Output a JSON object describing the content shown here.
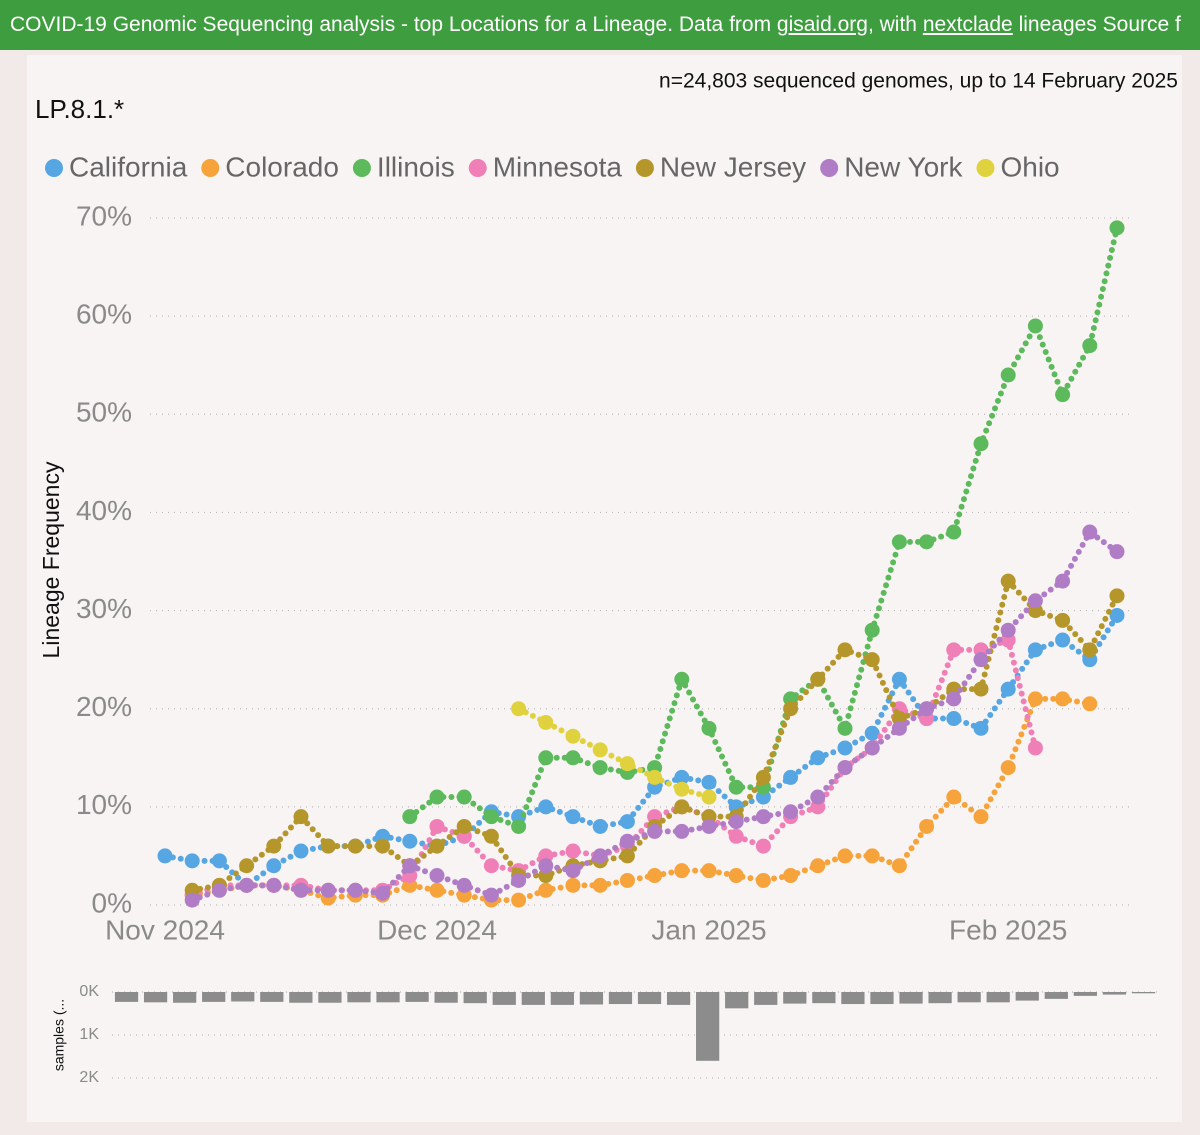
{
  "banner": {
    "parts": [
      "COVID-19 Genomic Sequencing analysis - top Locations for a Lineage. Data from ",
      "gisaid.org",
      ", with ",
      "nextclade",
      " lineages Source f"
    ]
  },
  "chart_data": [
    {
      "type": "line",
      "title": "LP.8.1.*",
      "subtitle": "n=24,803 sequenced genomes, up to 14 February 2025",
      "y_label": "Lineage Frequency",
      "legend": "top",
      "grid": true,
      "categories": [
        "Nov 2024",
        null,
        null,
        null,
        null,
        null,
        null,
        null,
        null,
        null,
        "Dec 2024",
        null,
        null,
        null,
        null,
        null,
        null,
        null,
        null,
        null,
        "Jan 2025",
        null,
        null,
        null,
        null,
        null,
        null,
        null,
        null,
        null,
        null,
        "Feb 2025",
        null,
        null,
        null,
        null
      ],
      "ylim": [
        0,
        70
      ],
      "yticks": [
        {
          "value": 0,
          "label": "0%"
        },
        {
          "value": 10,
          "label": "10%"
        },
        {
          "value": 20,
          "label": "20%"
        },
        {
          "value": 30,
          "label": "30%"
        },
        {
          "value": 40,
          "label": "40%"
        },
        {
          "value": 50,
          "label": "50%"
        },
        {
          "value": 60,
          "label": "60%"
        },
        {
          "value": 70,
          "label": "70%"
        }
      ],
      "series": [
        {
          "name": "California",
          "color": "#55a6e3",
          "values": [
            5,
            4.5,
            4.5,
            2,
            4,
            5.5,
            6,
            6,
            7,
            6.5,
            6,
            7,
            9.5,
            9,
            10,
            9,
            8,
            8.5,
            12,
            13,
            12.5,
            10,
            11,
            13,
            15,
            16,
            17.5,
            23,
            19,
            19,
            18,
            22,
            26,
            27,
            25,
            29.5
          ]
        },
        {
          "name": "Colorado",
          "color": "#f7a33c",
          "values": [
            null,
            1,
            1.5,
            2,
            2,
            1.5,
            0.7,
            1,
            1,
            2,
            1.5,
            1,
            0.5,
            0.5,
            1.5,
            2,
            2,
            2.5,
            3,
            3.5,
            3.5,
            3,
            2.5,
            3,
            4,
            5,
            5,
            4,
            8,
            11,
            9,
            14,
            21,
            21,
            20.5,
            null
          ]
        },
        {
          "name": "Illinois",
          "color": "#5cba5c",
          "values": [
            null,
            null,
            null,
            null,
            null,
            null,
            null,
            null,
            null,
            9,
            11,
            11,
            9,
            8,
            15,
            15,
            14,
            13.5,
            14,
            23,
            18,
            12,
            12,
            21,
            23,
            18,
            28,
            37,
            37,
            38,
            47,
            54,
            59,
            52,
            57,
            69
          ]
        },
        {
          "name": "Minnesota",
          "color": "#ef7fb6",
          "values": [
            null,
            1,
            2,
            2,
            2,
            2,
            1.5,
            1.5,
            1.5,
            3,
            8,
            7,
            4,
            3.5,
            5,
            5.5,
            5,
            6,
            9,
            10,
            9,
            7,
            6,
            9,
            10,
            14,
            16,
            20,
            19,
            26,
            26,
            27,
            16,
            null,
            null,
            null
          ]
        },
        {
          "name": "New Jersey",
          "color": "#b5962b",
          "values": [
            null,
            1.5,
            2,
            4,
            6,
            9,
            6,
            6,
            6,
            4,
            6,
            8,
            7,
            3,
            3,
            4,
            4.5,
            5,
            8,
            10,
            9,
            9,
            13,
            20,
            23,
            26,
            25,
            19,
            20,
            22,
            22,
            33,
            30,
            29,
            26,
            31.5
          ]
        },
        {
          "name": "New York",
          "color": "#b07cc6",
          "values": [
            null,
            0.5,
            1.5,
            2,
            2,
            1.5,
            1.5,
            1.5,
            1.2,
            4,
            3,
            2,
            1,
            2.5,
            4,
            3.5,
            5,
            6.5,
            7.5,
            7.5,
            8,
            8.5,
            9,
            9.5,
            11,
            14,
            16,
            18,
            20,
            21,
            25,
            28,
            31,
            33,
            38,
            36
          ]
        },
        {
          "name": "Ohio",
          "color": "#e0d23e",
          "values": [
            null,
            null,
            null,
            null,
            null,
            null,
            null,
            null,
            null,
            null,
            null,
            null,
            null,
            20,
            18.6,
            17.2,
            15.8,
            14.4,
            13,
            11.8,
            11,
            null,
            null,
            null,
            null,
            null,
            null,
            null,
            null,
            null,
            null,
            null,
            null,
            null,
            null,
            null
          ]
        }
      ]
    },
    {
      "type": "bar",
      "y_label": "samples (...",
      "y_inverted": true,
      "grid": true,
      "color": "#8c8c8c",
      "ylim": [
        0,
        2000
      ],
      "yticks": [
        {
          "value": 0,
          "label": "0K"
        },
        {
          "value": 1000,
          "label": "1K"
        },
        {
          "value": 2000,
          "label": "2K"
        }
      ],
      "values": [
        230,
        240,
        250,
        230,
        220,
        230,
        250,
        250,
        240,
        240,
        230,
        250,
        260,
        300,
        300,
        300,
        290,
        280,
        280,
        300,
        1600,
        380,
        300,
        270,
        260,
        280,
        280,
        270,
        260,
        240,
        240,
        200,
        160,
        90,
        60,
        30
      ]
    }
  ]
}
